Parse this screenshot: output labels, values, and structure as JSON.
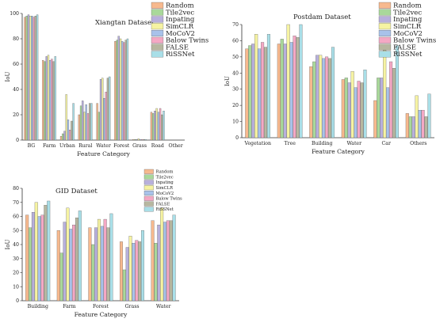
{
  "series_colors": [
    "#f7b98e",
    "#a9d89a",
    "#b8b0dc",
    "#f6f3a2",
    "#a8c2ea",
    "#f4a8c4",
    "#b7b7a0",
    "#a9dfe8"
  ],
  "chart_data": [
    {
      "type": "bar",
      "title": "Xiangtan Dataset",
      "xlabel": "Feature Category",
      "ylabel": "IoU",
      "ylim": [
        0,
        100
      ],
      "yticks": [
        0,
        20,
        40,
        60,
        80,
        100
      ],
      "grid": false,
      "legend": "top-right",
      "categories": [
        "BG",
        "Farm",
        "Urban",
        "Rural",
        "Water",
        "Forest",
        "Grass",
        "Road",
        "Other"
      ],
      "series": [
        {
          "name": "Random",
          "values": [
            97,
            63,
            3,
            20,
            29,
            78,
            0.5,
            22,
            0
          ]
        },
        {
          "name": "Tile2vec",
          "values": [
            98,
            62,
            5,
            27,
            22,
            79,
            0.5,
            21,
            0
          ]
        },
        {
          "name": "Inpating",
          "values": [
            99,
            66,
            7,
            31,
            48,
            82,
            0.5,
            23,
            0
          ]
        },
        {
          "name": "SimCLR",
          "values": [
            98,
            67,
            36,
            22,
            49,
            80,
            1,
            25,
            0
          ]
        },
        {
          "name": "MoCoV2",
          "values": [
            98,
            63,
            16,
            28,
            33,
            78,
            0.5,
            22,
            0
          ]
        },
        {
          "name": "Balow Twins",
          "values": [
            97,
            64,
            8,
            21,
            38,
            77,
            0.5,
            25,
            0
          ]
        },
        {
          "name": "FALSE",
          "values": [
            98,
            62,
            15,
            29,
            49,
            79,
            0.5,
            20,
            0
          ]
        },
        {
          "name": "RiSSNet",
          "values": [
            99,
            66,
            29,
            29,
            50,
            80,
            0.5,
            23,
            0
          ]
        }
      ]
    },
    {
      "type": "bar",
      "title": "Postdam Dataset",
      "xlabel": "Feature Category",
      "ylabel": "IoU",
      "ylim": [
        0,
        70
      ],
      "yticks": [
        0,
        10,
        20,
        30,
        40,
        50,
        60,
        70
      ],
      "grid": false,
      "legend": "top-right",
      "categories": [
        "Vegetation",
        "Tree",
        "Building",
        "Water",
        "Car",
        "Others"
      ],
      "series": [
        {
          "name": "Random",
          "values": [
            55,
            58,
            44,
            36,
            23,
            15
          ]
        },
        {
          "name": "Tile2vec",
          "values": [
            57,
            61,
            47,
            37,
            37,
            13
          ]
        },
        {
          "name": "Inpating",
          "values": [
            58,
            58,
            51,
            34,
            37,
            13
          ]
        },
        {
          "name": "SimCLR",
          "values": [
            64,
            70,
            51,
            41,
            54,
            26
          ]
        },
        {
          "name": "MoCoV2",
          "values": [
            55,
            59,
            49,
            31,
            31,
            17
          ]
        },
        {
          "name": "Balow Twins",
          "values": [
            59,
            63,
            50,
            35,
            47,
            17
          ]
        },
        {
          "name": "FALSE",
          "values": [
            56,
            62,
            49,
            34,
            43,
            13
          ]
        },
        {
          "name": "RiSSNet",
          "values": [
            64,
            70,
            56,
            42,
            57,
            27
          ]
        }
      ]
    },
    {
      "type": "bar",
      "title": "GID Dataset",
      "xlabel": "Feature Category",
      "ylabel": "IoU",
      "ylim": [
        0,
        80
      ],
      "yticks": [
        0,
        10,
        20,
        30,
        40,
        50,
        60,
        70,
        80
      ],
      "grid": false,
      "legend": "top-right",
      "categories": [
        "Building",
        "Farm",
        "Forest",
        "Grass",
        "Water"
      ],
      "series": [
        {
          "name": "Random",
          "values": [
            61,
            50,
            52,
            42,
            57
          ]
        },
        {
          "name": "Tile2vec",
          "values": [
            52,
            34,
            40,
            22,
            41
          ]
        },
        {
          "name": "Inpating",
          "values": [
            63,
            56,
            52,
            38,
            54
          ]
        },
        {
          "name": "SimCLR",
          "values": [
            70,
            66,
            58,
            46,
            66
          ]
        },
        {
          "name": "MoCoV2",
          "values": [
            60,
            51,
            53,
            41,
            56
          ]
        },
        {
          "name": "Balow Twins",
          "values": [
            61,
            54,
            58,
            43,
            57
          ]
        },
        {
          "name": "FALSE",
          "values": [
            68,
            59,
            52,
            42,
            57
          ]
        },
        {
          "name": "RiSSNet",
          "values": [
            71,
            64,
            62,
            50,
            61
          ]
        }
      ]
    }
  ]
}
